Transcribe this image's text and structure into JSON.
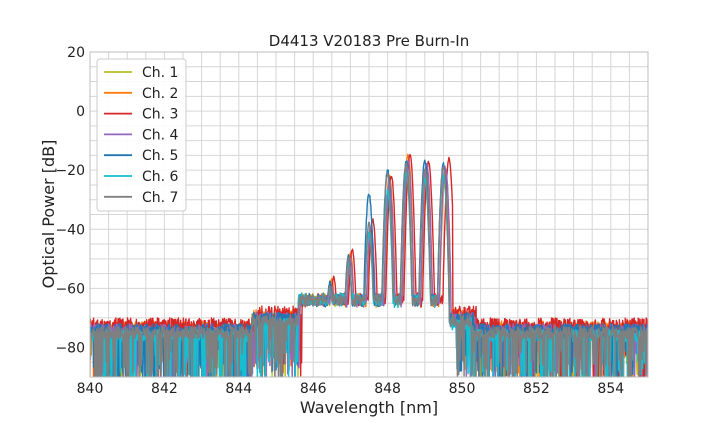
{
  "chart_data": {
    "type": "line",
    "title": "D4413 V20183 Pre Burn-In",
    "xlabel": "Wavelength [nm]",
    "ylabel": "Optical Power [dB]",
    "xlim": [
      840,
      855
    ],
    "ylim": [
      -90,
      20
    ],
    "xticks": [
      840,
      842,
      844,
      846,
      848,
      850,
      852,
      854
    ],
    "yticks": [
      20,
      0,
      -20,
      -40,
      -60,
      -80
    ],
    "grid": true,
    "legend_position": "top-left",
    "series": [
      {
        "name": "Ch. 1",
        "color": "#bcbd22",
        "offset": -0.05,
        "gain": -3.5,
        "noise_floor": -74,
        "peaks": [
          [
            845.55,
            -69
          ],
          [
            846.0,
            -67
          ],
          [
            846.5,
            -60
          ],
          [
            847.0,
            -51
          ],
          [
            847.55,
            -42
          ],
          [
            848.05,
            -30
          ],
          [
            848.55,
            -21
          ],
          [
            849.05,
            -22
          ],
          [
            849.55,
            -23
          ]
        ]
      },
      {
        "name": "Ch. 2",
        "color": "#ff7f0e",
        "offset": 0.0,
        "gain": -1.0,
        "noise_floor": -73,
        "peaks": [
          [
            845.55,
            -68
          ],
          [
            846.0,
            -65
          ],
          [
            846.5,
            -57
          ],
          [
            847.0,
            -48
          ],
          [
            847.55,
            -40
          ],
          [
            848.05,
            -22
          ],
          [
            848.55,
            -15
          ],
          [
            849.05,
            -19
          ],
          [
            849.55,
            -20
          ]
        ]
      },
      {
        "name": "Ch. 3",
        "color": "#d62728",
        "offset": 0.05,
        "gain": 0.0,
        "noise_floor": -72,
        "peaks": [
          [
            845.6,
            -66
          ],
          [
            846.05,
            -63
          ],
          [
            846.55,
            -56
          ],
          [
            847.05,
            -47
          ],
          [
            847.6,
            -37
          ],
          [
            848.1,
            -22
          ],
          [
            848.6,
            -15
          ],
          [
            849.1,
            -17
          ],
          [
            849.65,
            -16
          ]
        ]
      },
      {
        "name": "Ch. 4",
        "color": "#9467bd",
        "offset": 0.0,
        "gain": -2.0,
        "noise_floor": -74,
        "peaks": [
          [
            845.55,
            -69
          ],
          [
            846.0,
            -66
          ],
          [
            846.5,
            -59
          ],
          [
            847.0,
            -50
          ],
          [
            847.55,
            -39
          ],
          [
            848.05,
            -24
          ],
          [
            848.55,
            -17
          ],
          [
            849.05,
            -18
          ],
          [
            849.55,
            -19
          ]
        ]
      },
      {
        "name": "Ch. 5",
        "color": "#1f77b4",
        "offset": -0.05,
        "gain": -1.0,
        "noise_floor": -74,
        "peaks": [
          [
            845.5,
            -68
          ],
          [
            845.95,
            -65
          ],
          [
            846.45,
            -58
          ],
          [
            846.95,
            -49
          ],
          [
            847.5,
            -28
          ],
          [
            848.0,
            -20
          ],
          [
            848.5,
            -17
          ],
          [
            849.0,
            -17
          ],
          [
            849.5,
            -18
          ]
        ]
      },
      {
        "name": "Ch. 6",
        "color": "#17becf",
        "offset": -0.05,
        "gain": -3.0,
        "noise_floor": -76,
        "peaks": [
          [
            845.5,
            -70
          ],
          [
            845.95,
            -67
          ],
          [
            846.45,
            -60
          ],
          [
            846.95,
            -51
          ],
          [
            847.5,
            -41
          ],
          [
            848.0,
            -27
          ],
          [
            848.5,
            -21
          ],
          [
            849.0,
            -23
          ],
          [
            849.5,
            -22
          ]
        ]
      },
      {
        "name": "Ch. 7",
        "color": "#7f7f7f",
        "offset": -0.05,
        "gain": -2.0,
        "noise_floor": -75,
        "peaks": [
          [
            845.5,
            -69
          ],
          [
            845.95,
            -66
          ],
          [
            846.45,
            -59
          ],
          [
            846.95,
            -50
          ],
          [
            847.5,
            -38
          ],
          [
            848.0,
            -21
          ],
          [
            848.5,
            -18
          ],
          [
            849.0,
            -20
          ],
          [
            849.5,
            -19
          ]
        ]
      }
    ]
  }
}
